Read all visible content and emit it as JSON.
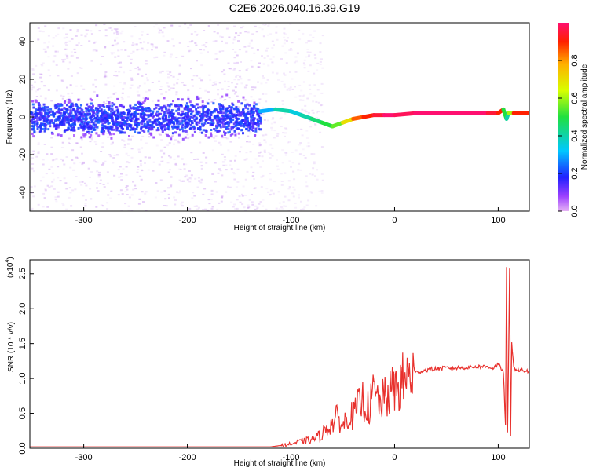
{
  "title": "C2E6.2026.040.16.39.G19",
  "colors": {
    "snr_line": "#e8302c",
    "frame": "#000000"
  },
  "colorbar": {
    "label": "Normalized spectral amplitude",
    "ticks": [
      "0.0",
      "0.2",
      "0.4",
      "0.6",
      "0.8"
    ],
    "tick_values": [
      0.0,
      0.2,
      0.4,
      0.6,
      0.8
    ],
    "range": [
      0,
      1
    ]
  },
  "chart_data": [
    {
      "type": "heatmap",
      "name": "spectrogram",
      "xlabel": "Height of straight line (km)",
      "ylabel": "Frequency (Hz)",
      "xlim": [
        -352,
        130
      ],
      "ylim": [
        -50,
        50
      ],
      "xticks": [
        -300,
        -200,
        -100,
        0,
        100
      ],
      "xtick_labels": [
        "-300",
        "-200",
        "-100",
        "0",
        "100"
      ],
      "yticks": [
        -40,
        -20,
        0,
        20,
        40
      ],
      "ytick_labels": [
        "-40",
        "-20",
        "0",
        "20",
        "40"
      ],
      "dominant_frequency_track": {
        "x": [
          -130,
          -115,
          -100,
          -90,
          -80,
          -70,
          -60,
          -50,
          -40,
          -30,
          -20,
          -10,
          0,
          20,
          40,
          60,
          80,
          90,
          100,
          105,
          108,
          110,
          115,
          130
        ],
        "y": [
          3,
          4,
          3,
          1,
          -1,
          -3,
          -5,
          -3,
          -1,
          0,
          1,
          1,
          1,
          2,
          2,
          2,
          2,
          2,
          2,
          4,
          -1,
          2,
          2,
          2
        ],
        "amplitude": [
          0.3,
          0.4,
          0.35,
          0.4,
          0.45,
          0.5,
          0.55,
          0.7,
          0.85,
          0.9,
          0.95,
          1.0,
          0.98,
          1.0,
          1.0,
          1.0,
          1.0,
          0.95,
          0.9,
          0.5,
          0.4,
          0.6,
          0.9,
          1.0
        ]
      }
    },
    {
      "type": "line",
      "name": "snr",
      "xlabel": "Height of straight line (km)",
      "ylabel": "SNR (10 * v/v)",
      "scale_label": "(x10",
      "scale_exp": "4",
      "xlim": [
        -352,
        130
      ],
      "ylim": [
        0,
        2.7
      ],
      "xticks": [
        -300,
        -200,
        -100,
        0,
        100
      ],
      "xtick_labels": [
        "-300",
        "-200",
        "-100",
        "0",
        "100"
      ],
      "yticks": [
        0,
        0.5,
        1.0,
        1.5,
        2.0,
        2.5
      ],
      "ytick_labels": [
        "0.0",
        "0.5",
        "1.0",
        "1.5",
        "2.0",
        "2.5"
      ],
      "x": [
        -352,
        -300,
        -200,
        -120,
        -110,
        -100,
        -90,
        -80,
        -70,
        -65,
        -60,
        -55,
        -50,
        -45,
        -40,
        -35,
        -30,
        -25,
        -20,
        -15,
        -10,
        -5,
        0,
        5,
        10,
        20,
        30,
        40,
        50,
        60,
        70,
        80,
        90,
        95,
        100,
        105,
        107,
        108,
        109,
        110,
        111,
        112,
        113,
        115,
        120,
        130
      ],
      "y": [
        0.02,
        0.02,
        0.02,
        0.02,
        0.04,
        0.06,
        0.1,
        0.12,
        0.2,
        0.3,
        0.35,
        0.45,
        0.3,
        0.5,
        0.45,
        0.6,
        0.7,
        0.55,
        0.8,
        0.65,
        0.7,
        0.78,
        0.85,
        0.9,
        1.0,
        1.08,
        1.12,
        1.14,
        1.15,
        1.15,
        1.16,
        1.17,
        1.17,
        1.15,
        1.2,
        1.1,
        0.3,
        2.6,
        0.2,
        1.3,
        2.6,
        0.15,
        1.5,
        1.15,
        1.12,
        1.1
      ]
    }
  ]
}
